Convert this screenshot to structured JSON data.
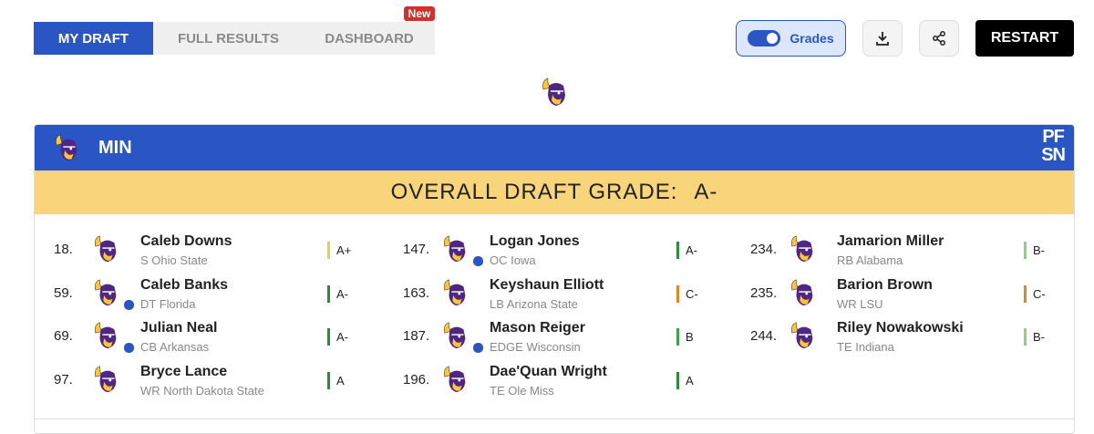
{
  "tabs": [
    {
      "label": "MY DRAFT"
    },
    {
      "label": "FULL RESULTS"
    },
    {
      "label": "DASHBOARD"
    }
  ],
  "new_badge": "New",
  "toolbar": {
    "grades_toggle": "Grades",
    "restart": "RESTART"
  },
  "team": {
    "abbr": "MIN"
  },
  "brand": {
    "top": "PF",
    "bottom": "SN"
  },
  "overall": {
    "label": "OVERALL DRAFT GRADE:",
    "value": "A-"
  },
  "columns": [
    [
      {
        "pick": "18.",
        "name": "Caleb Downs",
        "detail": "S Ohio State",
        "grade": "A+",
        "grade_color": "#f2c94c",
        "badge": false
      },
      {
        "pick": "59.",
        "name": "Caleb Banks",
        "detail": "DT Florida",
        "grade": "A-",
        "grade_color": "#2e8b3a",
        "badge": true
      },
      {
        "pick": "69.",
        "name": "Julian Neal",
        "detail": "CB Arkansas",
        "grade": "A-",
        "grade_color": "#2e8b3a",
        "badge": true
      },
      {
        "pick": "97.",
        "name": "Bryce Lance",
        "detail": "WR North Dakota State",
        "grade": "A",
        "grade_color": "#2e8b3a",
        "badge": false
      }
    ],
    [
      {
        "pick": "147.",
        "name": "Logan Jones",
        "detail": "OC Iowa",
        "grade": "A-",
        "grade_color": "#2e8b3a",
        "badge": true
      },
      {
        "pick": "163.",
        "name": "Keyshaun Elliott",
        "detail": "LB Arizona State",
        "grade": "C-",
        "grade_color": "#e8832a",
        "badge": false
      },
      {
        "pick": "187.",
        "name": "Mason Reiger",
        "detail": "EDGE Wisconsin",
        "grade": "B",
        "grade_color": "#3aa64a",
        "badge": true
      },
      {
        "pick": "196.",
        "name": "Dae'Quan Wright",
        "detail": "TE Ole Miss",
        "grade": "A",
        "grade_color": "#2e8b3a",
        "badge": false
      }
    ],
    [
      {
        "pick": "234.",
        "name": "Jamarion Miller",
        "detail": "RB Alabama",
        "grade": "B-",
        "grade_color": "#8fd17f",
        "badge": false
      },
      {
        "pick": "235.",
        "name": "Barion Brown",
        "detail": "WR LSU",
        "grade": "C-",
        "grade_color": "#e8832a",
        "badge": false
      },
      {
        "pick": "244.",
        "name": "Riley Nowakowski",
        "detail": "TE Indiana",
        "grade": "B-",
        "grade_color": "#8fd17f",
        "badge": false
      }
    ]
  ]
}
